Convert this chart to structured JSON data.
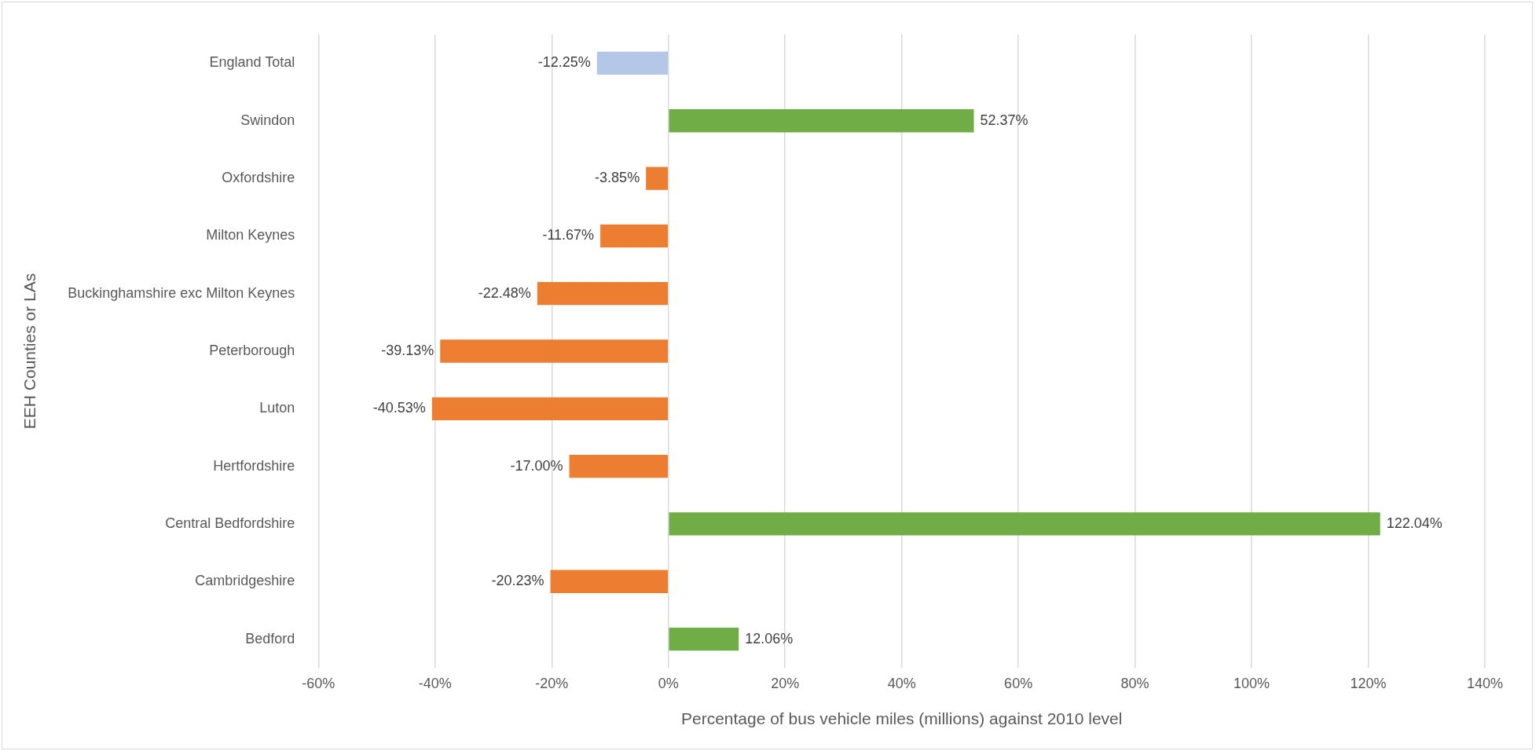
{
  "chart_data": {
    "type": "bar",
    "orientation": "horizontal",
    "xlabel": "Percentage of bus vehicle miles (millions) against 2010 level",
    "ylabel": "EEH Counties or LAs",
    "categories": [
      "England Total",
      "Swindon",
      "Oxfordshire",
      "Milton Keynes",
      "Buckinghamshire exc Milton Keynes",
      "Peterborough",
      "Luton",
      "Hertfordshire",
      "Central Bedfordshire",
      "Cambridgeshire",
      "Bedford"
    ],
    "values": [
      -12.25,
      52.37,
      -3.85,
      -11.67,
      -22.48,
      -39.13,
      -40.53,
      -17.0,
      122.04,
      -20.23,
      12.06
    ],
    "colors": [
      "#b4c7e7",
      "#70ad47",
      "#ed7d31",
      "#ed7d31",
      "#ed7d31",
      "#ed7d31",
      "#ed7d31",
      "#ed7d31",
      "#70ad47",
      "#ed7d31",
      "#70ad47"
    ],
    "value_labels": [
      "-12.25%",
      "52.37%",
      "-3.85%",
      "-11.67%",
      "-22.48%",
      "-39.13%",
      "-40.53%",
      "-17.00%",
      "122.04%",
      "-20.23%",
      "12.06%"
    ],
    "xlim": [
      -60,
      140
    ],
    "xticks": [
      {
        "value": -60,
        "label": "-60%"
      },
      {
        "value": -40,
        "label": "-40%"
      },
      {
        "value": -20,
        "label": "-20%"
      },
      {
        "value": 0,
        "label": "0%"
      },
      {
        "value": 20,
        "label": "20%"
      },
      {
        "value": 40,
        "label": "40%"
      },
      {
        "value": 60,
        "label": "60%"
      },
      {
        "value": 80,
        "label": "80%"
      },
      {
        "value": 100,
        "label": "100%"
      },
      {
        "value": 120,
        "label": "120%"
      },
      {
        "value": 140,
        "label": "140%"
      }
    ],
    "grid": "x"
  }
}
